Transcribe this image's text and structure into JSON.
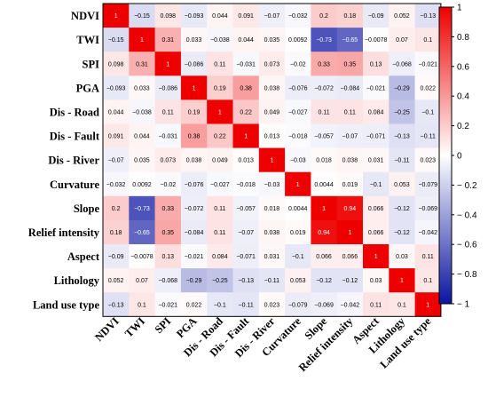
{
  "chart_data": {
    "type": "heatmap",
    "title": "",
    "xlabel": "",
    "ylabel": "",
    "variables": [
      "NDVI",
      "TWI",
      "SPI",
      "PGA",
      "Dis - Road",
      "Dis - Fault",
      "Dis - River",
      "Curvature",
      "Slope",
      "Relief intensity",
      "Aspect",
      "Lithology",
      "Land use type"
    ],
    "matrix": [
      [
        1,
        -0.15,
        0.098,
        -0.093,
        0.044,
        0.091,
        -0.07,
        -0.032,
        0.2,
        0.18,
        -0.09,
        0.052,
        -0.13
      ],
      [
        -0.15,
        1,
        0.31,
        0.033,
        -0.038,
        0.044,
        0.035,
        0.0092,
        -0.73,
        -0.65,
        -0.0078,
        0.07,
        0.1
      ],
      [
        0.098,
        0.31,
        1,
        -0.086,
        0.11,
        -0.031,
        0.073,
        -0.02,
        0.33,
        0.35,
        0.13,
        -0.068,
        -0.021
      ],
      [
        -0.093,
        0.033,
        -0.086,
        1,
        0.19,
        0.38,
        0.038,
        -0.076,
        -0.072,
        -0.084,
        -0.021,
        -0.29,
        0.022
      ],
      [
        0.044,
        -0.038,
        0.11,
        0.19,
        1,
        0.22,
        0.049,
        -0.027,
        0.11,
        0.11,
        0.084,
        -0.25,
        -0.1
      ],
      [
        0.091,
        0.044,
        -0.031,
        0.38,
        0.22,
        1,
        0.013,
        -0.018,
        -0.057,
        -0.07,
        -0.071,
        -0.13,
        -0.11
      ],
      [
        -0.07,
        0.035,
        0.073,
        0.038,
        0.049,
        0.013,
        1,
        -0.03,
        0.018,
        0.038,
        0.031,
        -0.11,
        0.023
      ],
      [
        -0.032,
        0.0092,
        -0.02,
        -0.076,
        -0.027,
        -0.018,
        -0.03,
        1,
        0.0044,
        0.019,
        -0.1,
        0.053,
        -0.079
      ],
      [
        0.2,
        -0.73,
        0.33,
        -0.072,
        0.11,
        -0.057,
        0.018,
        0.0044,
        1,
        0.94,
        0.066,
        -0.12,
        -0.069
      ],
      [
        0.18,
        -0.65,
        0.35,
        -0.084,
        0.11,
        -0.07,
        0.038,
        0.019,
        0.94,
        1,
        0.066,
        -0.12,
        -0.042
      ],
      [
        -0.09,
        -0.0078,
        0.13,
        -0.021,
        0.084,
        -0.071,
        0.031,
        -0.1,
        0.066,
        0.066,
        1,
        0.03,
        0.11
      ],
      [
        0.052,
        0.07,
        -0.068,
        -0.29,
        -0.25,
        -0.13,
        -0.11,
        0.053,
        -0.12,
        -0.12,
        0.03,
        1,
        0.1
      ],
      [
        -0.13,
        0.1,
        -0.021,
        0.022,
        -0.1,
        -0.11,
        0.023,
        -0.079,
        -0.069,
        -0.042,
        0.11,
        0.1,
        1
      ]
    ],
    "value_range": [
      -1,
      1
    ],
    "colorbar": {
      "ticks": [
        1,
        0.8,
        0.6,
        0.4,
        0.2,
        0,
        -0.2,
        -0.4,
        -0.6,
        -0.8,
        -1
      ],
      "tick_labels": [
        "1",
        "0.8",
        "0.6",
        "0.4",
        "0.2",
        "0",
        "− 0.2",
        "− 0.4",
        "− 0.6",
        "− 0.8",
        "− 1"
      ],
      "colors": {
        "negative": "#0a14a0",
        "zero": "#ffffff",
        "positive": "#ee0000"
      },
      "placement": "right"
    },
    "grid": false
  }
}
